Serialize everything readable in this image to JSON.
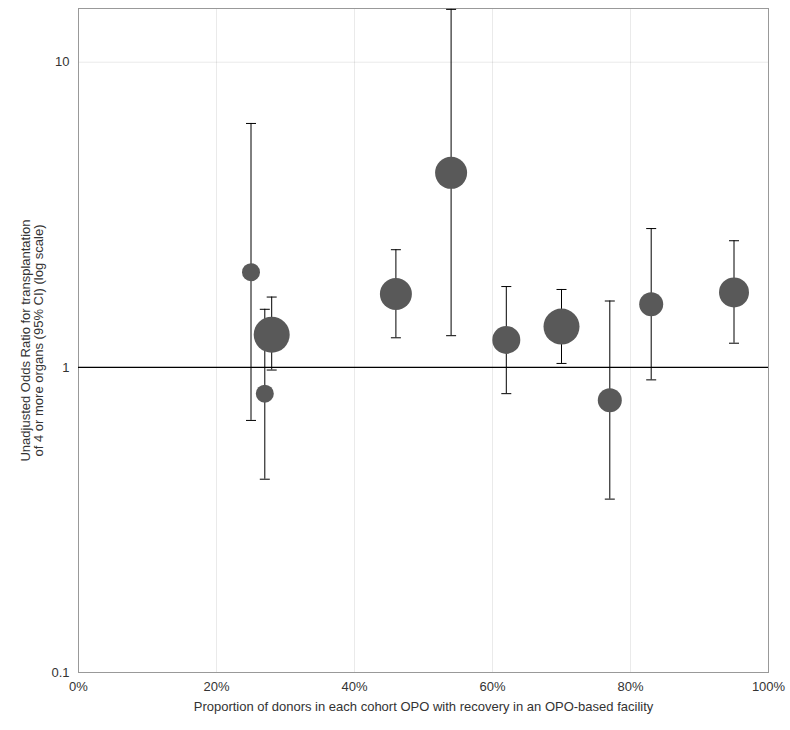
{
  "chart_data": {
    "type": "scatter",
    "x_label": "Proportion of donors in each cohort OPO with recovery in an OPO-based facility",
    "y_label": "Unadjusted Odds Ratio for transplantation\nof 4 or more organs (95% CI) (log scale)",
    "x": [
      25,
      27,
      28,
      46,
      54,
      62,
      70,
      77,
      83,
      95
    ],
    "values": [
      2.05,
      0.82,
      1.28,
      1.74,
      4.34,
      1.23,
      1.36,
      0.78,
      1.61,
      1.76
    ],
    "ci_lower": [
      0.67,
      0.43,
      0.98,
      1.25,
      1.27,
      0.82,
      1.03,
      0.37,
      0.91,
      1.2
    ],
    "ci_upper": [
      6.3,
      1.55,
      1.7,
      2.43,
      14.9,
      1.84,
      1.8,
      1.65,
      2.85,
      2.6
    ],
    "sizes": [
      81,
      81,
      324,
      256,
      256,
      196,
      324,
      144,
      144,
      225
    ],
    "reference_line": 1,
    "color": "#595959",
    "xlim": [
      0,
      100
    ],
    "xticks": [
      {
        "value": 0,
        "label": "0%"
      },
      {
        "value": 20,
        "label": "20%"
      },
      {
        "value": 40,
        "label": "40%"
      },
      {
        "value": 60,
        "label": "60%"
      },
      {
        "value": 80,
        "label": "80%"
      },
      {
        "value": 100,
        "label": "100%"
      }
    ],
    "ylim": [
      0.1,
      15
    ],
    "yticks": [
      0.1,
      1,
      10
    ],
    "log": "y",
    "grid": true
  }
}
